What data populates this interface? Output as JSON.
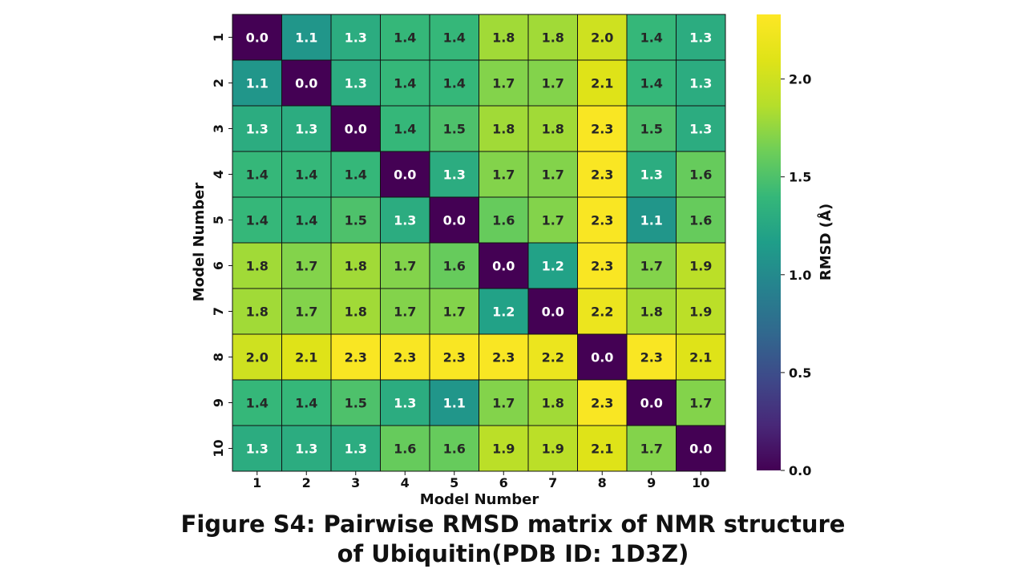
{
  "chart_data": {
    "type": "heatmap",
    "xlabel": "Model Number",
    "ylabel": "Model Number",
    "x_categories": [
      "1",
      "2",
      "3",
      "4",
      "5",
      "6",
      "7",
      "8",
      "9",
      "10"
    ],
    "y_categories": [
      "1",
      "2",
      "3",
      "4",
      "5",
      "6",
      "7",
      "8",
      "9",
      "10"
    ],
    "values": [
      [
        0.0,
        1.1,
        1.3,
        1.4,
        1.4,
        1.8,
        1.8,
        2.0,
        1.4,
        1.3
      ],
      [
        1.1,
        0.0,
        1.3,
        1.4,
        1.4,
        1.7,
        1.7,
        2.1,
        1.4,
        1.3
      ],
      [
        1.3,
        1.3,
        0.0,
        1.4,
        1.5,
        1.8,
        1.8,
        2.3,
        1.5,
        1.3
      ],
      [
        1.4,
        1.4,
        1.4,
        0.0,
        1.3,
        1.7,
        1.7,
        2.3,
        1.3,
        1.6
      ],
      [
        1.4,
        1.4,
        1.5,
        1.3,
        0.0,
        1.6,
        1.7,
        2.3,
        1.1,
        1.6
      ],
      [
        1.8,
        1.7,
        1.8,
        1.7,
        1.6,
        0.0,
        1.2,
        2.3,
        1.7,
        1.9
      ],
      [
        1.8,
        1.7,
        1.8,
        1.7,
        1.7,
        1.2,
        0.0,
        2.2,
        1.8,
        1.9
      ],
      [
        2.0,
        2.1,
        2.3,
        2.3,
        2.3,
        2.3,
        2.2,
        0.0,
        2.3,
        2.1
      ],
      [
        1.4,
        1.4,
        1.5,
        1.3,
        1.1,
        1.7,
        1.8,
        2.3,
        0.0,
        1.7
      ],
      [
        1.3,
        1.3,
        1.3,
        1.6,
        1.6,
        1.9,
        1.9,
        2.1,
        1.7,
        0.0
      ]
    ],
    "colorbar": {
      "label": "RMSD (Å)",
      "range": [
        0.0,
        2.33
      ],
      "ticks": [
        "0.0",
        "0.5",
        "1.0",
        "1.5",
        "2.0"
      ],
      "colormap": "viridis"
    }
  },
  "caption": {
    "line1": "Figure S4: Pairwise RMSD matrix of NMR structure",
    "line2": "of Ubiquitin(PDB ID: 1D3Z)"
  }
}
